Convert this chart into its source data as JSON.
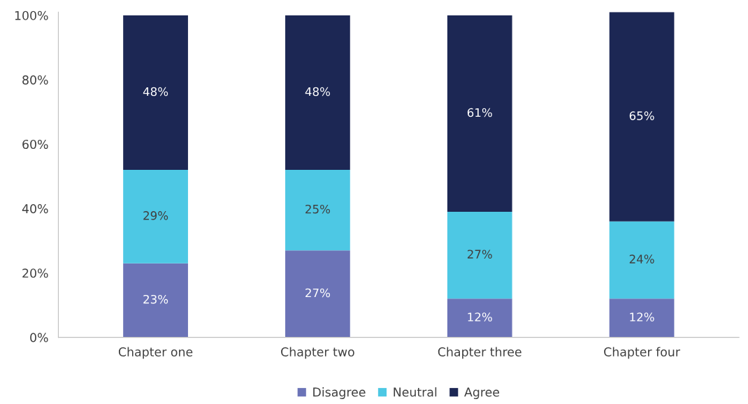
{
  "chart_data": {
    "type": "bar",
    "stacked": true,
    "categories": [
      "Chapter one",
      "Chapter two",
      "Chapter three",
      "Chapter four"
    ],
    "series": [
      {
        "name": "Disagree",
        "color": "#6b73b7",
        "values": [
          23,
          27,
          12,
          12
        ],
        "value_labels": [
          "23%",
          "27%",
          "12%",
          "12%"
        ]
      },
      {
        "name": "Neutral",
        "color": "#4dc8e4",
        "values": [
          29,
          25,
          27,
          24
        ],
        "value_labels": [
          "29%",
          "25%",
          "27%",
          "24%"
        ]
      },
      {
        "name": "Agree",
        "color": "#1c2754",
        "values": [
          48,
          48,
          61,
          65
        ],
        "value_labels": [
          "48%",
          "48%",
          "61%",
          "65%"
        ]
      }
    ],
    "ylim": [
      0,
      101
    ],
    "yticks": [
      {
        "value": 0,
        "label": "0%"
      },
      {
        "value": 20,
        "label": "20%"
      },
      {
        "value": 40,
        "label": "40%"
      },
      {
        "value": 60,
        "label": "60%"
      },
      {
        "value": 80,
        "label": "80%"
      },
      {
        "value": 100,
        "label": "100%"
      }
    ],
    "grid": false,
    "legend": "bottom"
  }
}
